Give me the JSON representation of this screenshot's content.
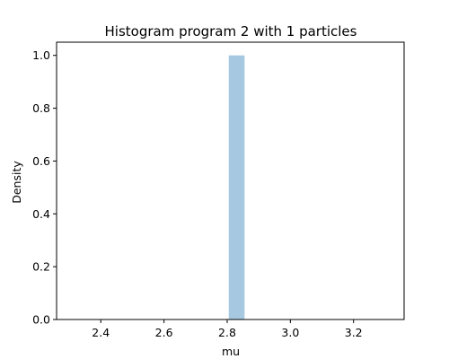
{
  "chart_data": {
    "type": "bar",
    "title": "Histogram program 2 with 1 particles",
    "xlabel": "mu",
    "ylabel": "Density",
    "xlim": [
      2.26,
      3.36
    ],
    "ylim": [
      0.0,
      1.05
    ],
    "x_ticks": [
      "2.4",
      "2.6",
      "2.8",
      "3.0",
      "3.2"
    ],
    "y_ticks": [
      "0.0",
      "0.2",
      "0.4",
      "0.6",
      "0.8",
      "1.0"
    ],
    "bins": [
      {
        "x_start": 2.805,
        "x_end": 2.855,
        "value": 1.0
      }
    ],
    "bar_color": "#a6c8e0",
    "grid": false,
    "legend": "none"
  }
}
